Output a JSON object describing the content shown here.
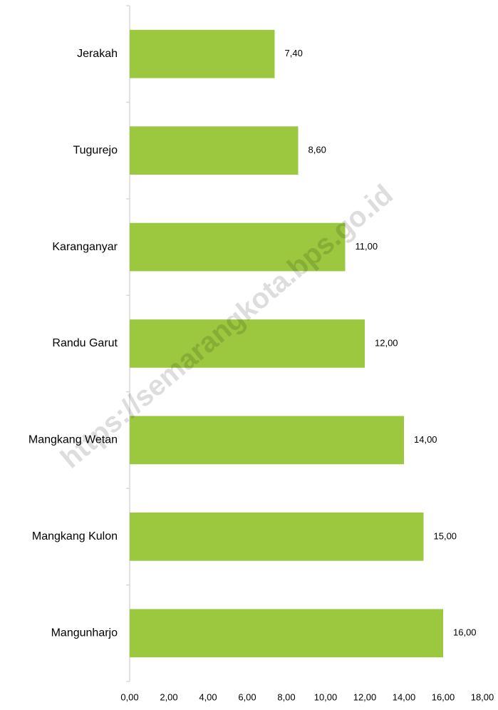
{
  "chart_data": {
    "type": "bar",
    "orientation": "horizontal",
    "watermark": "https://semarangkota.bps.go.id",
    "categories": [
      "Jerakah",
      "Tugurejo",
      "Karanganyar",
      "Randu Garut",
      "Mangkang Wetan",
      "Mangkang Kulon",
      "Mangunharjo"
    ],
    "values": [
      7.4,
      8.6,
      11,
      12,
      14,
      15,
      16
    ],
    "value_labels": [
      "7,40",
      "8,60",
      "11,00",
      "12,00",
      "14,00",
      "15,00",
      "16,00"
    ],
    "color": "#9bc83e",
    "xlim": [
      0,
      18
    ],
    "xticks": [
      {
        "value": 0,
        "label": "0,00"
      },
      {
        "value": 2,
        "label": "2,00"
      },
      {
        "value": 4,
        "label": "4,00"
      },
      {
        "value": 6,
        "label": "6,00"
      },
      {
        "value": 8,
        "label": "8,00"
      },
      {
        "value": 10,
        "label": "10,00"
      },
      {
        "value": 12,
        "label": "12,00"
      },
      {
        "value": 14,
        "label": "14,00"
      },
      {
        "value": 16,
        "label": "16,00"
      },
      {
        "value": 18,
        "label": "18,00"
      }
    ],
    "grid": false
  }
}
